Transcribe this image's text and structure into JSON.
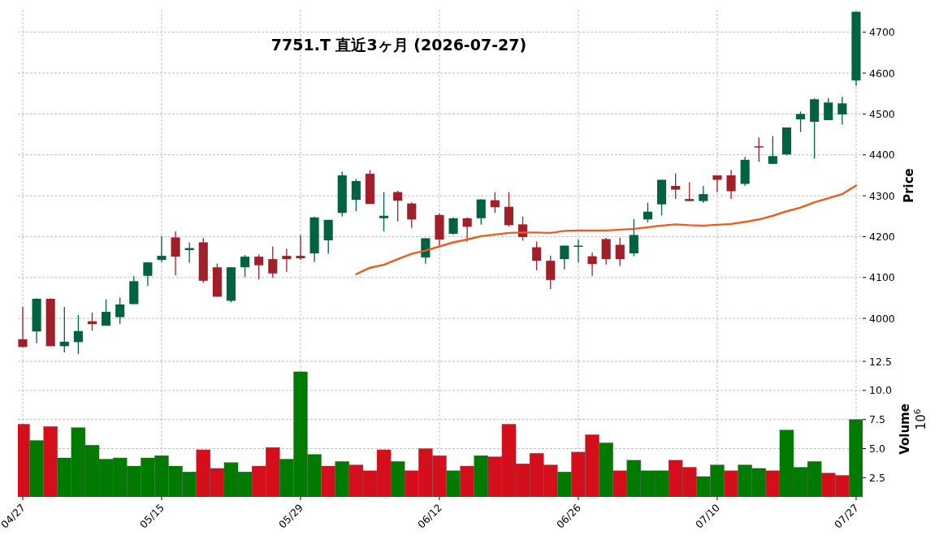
{
  "chart_data": [
    {
      "type": "candlestick",
      "title": "7751.T  直近3ヶ月  (2026-07-27)",
      "ylabel": "Price",
      "categories": [
        null,
        null,
        null,
        null,
        null,
        null,
        null,
        null,
        null,
        null,
        null,
        null,
        null,
        null,
        null,
        null,
        null,
        null,
        null,
        null,
        null,
        null,
        null,
        null,
        null,
        null,
        null,
        null,
        null,
        null,
        null,
        null,
        null,
        null,
        null,
        null,
        null,
        null,
        null,
        null,
        null,
        null,
        null,
        null,
        null,
        null,
        null,
        null,
        null,
        null,
        null,
        null,
        null,
        null,
        null,
        null,
        null,
        null,
        null,
        null,
        null
      ],
      "ohlc": [
        [
          3949,
          4028,
          3930,
          3930
        ],
        [
          3968,
          4049,
          3939,
          4048
        ],
        [
          4048,
          4049,
          3932,
          3932
        ],
        [
          3932,
          4028,
          3917,
          3943
        ],
        [
          3942,
          4008,
          3913,
          3969
        ],
        [
          3993,
          4014,
          3970,
          3986
        ],
        [
          3982,
          4047,
          3982,
          4016
        ],
        [
          4003,
          4051,
          3986,
          4034
        ],
        [
          4035,
          4103,
          4035,
          4091
        ],
        [
          4104,
          4138,
          4079,
          4137
        ],
        [
          4143,
          4201,
          4138,
          4153
        ],
        [
          4198,
          4213,
          4105,
          4151
        ],
        [
          4167,
          4186,
          4136,
          4172
        ],
        [
          4186,
          4197,
          4087,
          4092
        ],
        [
          4125,
          4134,
          4053,
          4053
        ],
        [
          4043,
          4125,
          4039,
          4125
        ],
        [
          4125,
          4155,
          4101,
          4151
        ],
        [
          4151,
          4156,
          4095,
          4130
        ],
        [
          4145,
          4176,
          4099,
          4110
        ],
        [
          4153,
          4170,
          4114,
          4145
        ],
        [
          4153,
          4204,
          4143,
          4147
        ],
        [
          4159,
          4249,
          4138,
          4247
        ],
        [
          4191,
          4241,
          4158,
          4241
        ],
        [
          4258,
          4359,
          4249,
          4350
        ],
        [
          4290,
          4341,
          4262,
          4336
        ],
        [
          4354,
          4363,
          4280,
          4280
        ],
        [
          4245,
          4309,
          4213,
          4251
        ],
        [
          4309,
          4312,
          4237,
          4288
        ],
        [
          4281,
          4284,
          4221,
          4242
        ],
        [
          4149,
          4196,
          4134,
          4196
        ],
        [
          4253,
          4257,
          4176,
          4193
        ],
        [
          4207,
          4247,
          4205,
          4245
        ],
        [
          4245,
          4247,
          4188,
          4224
        ],
        [
          4245,
          4291,
          4229,
          4291
        ],
        [
          4289,
          4308,
          4258,
          4272
        ],
        [
          4273,
          4309,
          4225,
          4228
        ],
        [
          4230,
          4249,
          4190,
          4199
        ],
        [
          4174,
          4188,
          4118,
          4141
        ],
        [
          4141,
          4153,
          4072,
          4094
        ],
        [
          4145,
          4178,
          4120,
          4178
        ],
        [
          4176,
          4193,
          4137,
          4178
        ],
        [
          4152,
          4161,
          4104,
          4133
        ],
        [
          4194,
          4197,
          4132,
          4145
        ],
        [
          4180,
          4197,
          4128,
          4145
        ],
        [
          4159,
          4243,
          4152,
          4204
        ],
        [
          4242,
          4283,
          4235,
          4261
        ],
        [
          4279,
          4339,
          4252,
          4339
        ],
        [
          4324,
          4355,
          4292,
          4315
        ],
        [
          4292,
          4333,
          4287,
          4287
        ],
        [
          4287,
          4324,
          4283,
          4304
        ],
        [
          4350,
          4350,
          4309,
          4339
        ],
        [
          4350,
          4363,
          4292,
          4311
        ],
        [
          4329,
          4395,
          4324,
          4388
        ],
        [
          4421,
          4442,
          4383,
          4418
        ],
        [
          4378,
          4446,
          4378,
          4397
        ],
        [
          4401,
          4467,
          4399,
          4467
        ],
        [
          4487,
          4506,
          4456,
          4500
        ],
        [
          4481,
          4538,
          4391,
          4536
        ],
        [
          4485,
          4539,
          4485,
          4528
        ],
        [
          4499,
          4542,
          4474,
          4526
        ],
        [
          4582,
          4750,
          4569,
          4750
        ]
      ],
      "colors": [
        "#a01f28",
        "#006340",
        "#a01f28",
        "#006340",
        "#006340",
        "#a01f28",
        "#006340",
        "#006340",
        "#006340",
        "#006340",
        "#006340",
        "#a01f28",
        "#006340",
        "#a01f28",
        "#a01f28",
        "#006340",
        "#006340",
        "#a01f28",
        "#a01f28",
        "#a01f28",
        "#a01f28",
        "#006340",
        "#006340",
        "#006340",
        "#006340",
        "#a01f28",
        "#006340",
        "#a01f28",
        "#a01f28",
        "#006340",
        "#a01f28",
        "#006340",
        "#a01f28",
        "#006340",
        "#a01f28",
        "#a01f28",
        "#a01f28",
        "#a01f28",
        "#a01f28",
        "#006340",
        "#006340",
        "#a01f28",
        "#a01f28",
        "#a01f28",
        "#006340",
        "#006340",
        "#006340",
        "#a01f28",
        "#a01f28",
        "#006340",
        "#a01f28",
        "#a01f28",
        "#006340",
        "#a01f28",
        "#006340",
        "#006340",
        "#006340",
        "#006340",
        "#006340",
        "#006340",
        "#006340"
      ],
      "series": [
        {
          "type": "line",
          "color": "#f05a1a",
          "values": [
            null,
            null,
            null,
            null,
            null,
            null,
            null,
            null,
            null,
            null,
            null,
            null,
            null,
            null,
            null,
            null,
            null,
            null,
            null,
            null,
            null,
            null,
            null,
            null,
            4108,
            4124,
            4131,
            4145,
            4158,
            4166,
            4176,
            4186,
            4193,
            4201,
            4205,
            4209,
            4210,
            4210,
            4209,
            4214,
            4215,
            4215,
            4215,
            4217,
            4219,
            4223,
            4227,
            4230,
            4228,
            4227,
            4229,
            4231,
            4236,
            4242,
            4251,
            4262,
            4271,
            4284,
            4294,
            4304,
            4325
          ]
        }
      ],
      "ylim": [
        3895,
        4755
      ],
      "yticks": [
        4000,
        4100,
        4200,
        4300,
        4400,
        4500,
        4600,
        4700
      ],
      "grid": true,
      "tick_labels": "y"
    },
    {
      "type": "bar",
      "ylabel": "Volume",
      "annotations": [
        "10$^{6}$"
      ],
      "categories": [
        "04/27",
        null,
        null,
        null,
        null,
        null,
        null,
        null,
        null,
        null,
        "05/15",
        null,
        null,
        null,
        null,
        null,
        null,
        null,
        null,
        null,
        "05/29",
        null,
        null,
        null,
        null,
        null,
        null,
        null,
        null,
        null,
        "06/12",
        null,
        null,
        null,
        null,
        null,
        null,
        null,
        null,
        null,
        "06/26",
        null,
        null,
        null,
        null,
        null,
        null,
        null,
        null,
        null,
        "07/10",
        null,
        null,
        null,
        null,
        null,
        null,
        null,
        null,
        null,
        "07/27"
      ],
      "values": [
        7.1,
        5.7,
        6.9,
        4.2,
        6.8,
        5.3,
        4.1,
        4.2,
        3.5,
        4.2,
        4.4,
        3.5,
        3.0,
        4.9,
        3.3,
        3.8,
        3.0,
        3.5,
        5.1,
        4.1,
        11.6,
        4.5,
        3.5,
        3.9,
        3.6,
        3.1,
        4.9,
        3.9,
        3.1,
        5.0,
        4.4,
        3.1,
        3.5,
        4.4,
        4.3,
        7.1,
        3.7,
        4.6,
        3.6,
        3.0,
        4.7,
        6.2,
        5.5,
        3.1,
        4.0,
        3.1,
        3.1,
        4.0,
        3.4,
        2.6,
        3.6,
        3.1,
        3.6,
        3.3,
        3.1,
        6.6,
        3.4,
        3.9,
        2.9,
        2.7,
        7.5
      ],
      "colors": [
        "#d40f1b",
        "#007a00",
        "#d40f1b",
        "#007a00",
        "#007a00",
        "#007a00",
        "#007a00",
        "#007a00",
        "#007a00",
        "#007a00",
        "#007a00",
        "#007a00",
        "#007a00",
        "#d40f1b",
        "#d40f1b",
        "#007a00",
        "#007a00",
        "#d40f1b",
        "#d40f1b",
        "#007a00",
        "#007a00",
        "#007a00",
        "#d40f1b",
        "#007a00",
        "#d40f1b",
        "#d40f1b",
        "#d40f1b",
        "#007a00",
        "#d40f1b",
        "#d40f1b",
        "#d40f1b",
        "#007a00",
        "#d40f1b",
        "#007a00",
        "#d40f1b",
        "#d40f1b",
        "#d40f1b",
        "#d40f1b",
        "#d40f1b",
        "#007a00",
        "#d40f1b",
        "#d40f1b",
        "#007a00",
        "#d40f1b",
        "#007a00",
        "#007a00",
        "#007a00",
        "#d40f1b",
        "#d40f1b",
        "#007a00",
        "#007a00",
        "#d40f1b",
        "#007a00",
        "#007a00",
        "#d40f1b",
        "#007a00",
        "#007a00",
        "#007a00",
        "#d40f1b",
        "#d40f1b",
        "#007a00"
      ],
      "ylim": [
        0.85,
        12.5
      ],
      "yticks": [
        {
          "value": 2.5,
          "label": "2.5"
        },
        {
          "value": 5,
          "label": "5.0"
        },
        {
          "value": 7.5,
          "label": "7.5"
        },
        {
          "value": 10,
          "label": "10.0"
        },
        {
          "value": 12.5,
          "label": "12.5"
        }
      ],
      "grid": true
    }
  ]
}
